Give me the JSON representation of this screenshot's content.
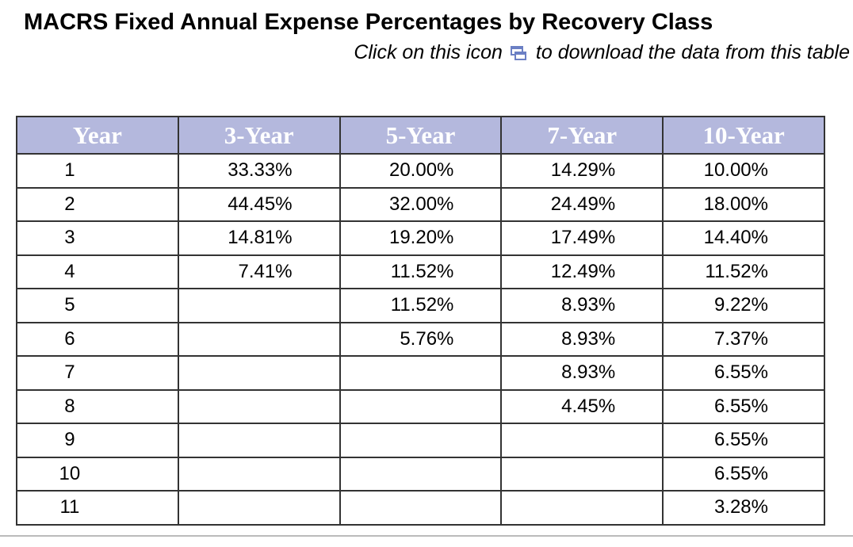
{
  "header": {
    "title": "MACRS Fixed Annual Expense Percentages by Recovery Class",
    "subtitle_before": "Click on this icon",
    "subtitle_after": "to download the data from this table"
  },
  "table": {
    "columns": [
      "Year",
      "3-Year",
      "5-Year",
      "7-Year",
      "10-Year"
    ],
    "rows": [
      [
        "1",
        "33.33%",
        "20.00%",
        "14.29%",
        "10.00%"
      ],
      [
        "2",
        "44.45%",
        "32.00%",
        "24.49%",
        "18.00%"
      ],
      [
        "3",
        "14.81%",
        "19.20%",
        "17.49%",
        "14.40%"
      ],
      [
        "4",
        "7.41%",
        "11.52%",
        "12.49%",
        "11.52%"
      ],
      [
        "5",
        null,
        "11.52%",
        "8.93%",
        "9.22%"
      ],
      [
        "6",
        null,
        "5.76%",
        "8.93%",
        "7.37%"
      ],
      [
        "7",
        null,
        null,
        "8.93%",
        "6.55%"
      ],
      [
        "8",
        null,
        null,
        "4.45%",
        "6.55%"
      ],
      [
        "9",
        null,
        null,
        null,
        "6.55%"
      ],
      [
        "10",
        null,
        null,
        null,
        "6.55%"
      ],
      [
        "11",
        null,
        null,
        null,
        "3.28%"
      ]
    ]
  }
}
